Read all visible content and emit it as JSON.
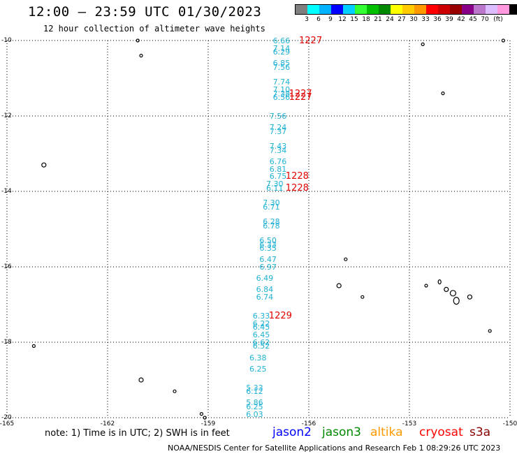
{
  "header": {
    "title": "12:00 — 23:59 UTC 01/30/2023",
    "subtitle": "12 hour collection of altimeter wave heights"
  },
  "scale": {
    "colors": [
      "#7f7f7f",
      "#00ffff",
      "#00b3ff",
      "#0000ff",
      "#00cfff",
      "#33ff33",
      "#00c000",
      "#008800",
      "#ffff00",
      "#ffcc00",
      "#ff9900",
      "#ff0000",
      "#cc0000",
      "#990000",
      "#880088",
      "#bb77cc",
      "#ddbbff",
      "#ff99dd",
      "#000000"
    ],
    "labels": [
      "3",
      "6",
      "9",
      "12",
      "15",
      "18",
      "21",
      "24",
      "27",
      "30",
      "33",
      "36",
      "39",
      "42",
      "45",
      "70",
      "(ft)"
    ]
  },
  "map": {
    "lon_range": [
      -165,
      -150
    ],
    "lat_range": [
      -20,
      -10
    ],
    "x_ticks": [
      "-165",
      "-162",
      "-159",
      "-156",
      "-153",
      "-150"
    ],
    "y_ticks": [
      "-10",
      "-12",
      "-14",
      "-16",
      "-18",
      "-20"
    ],
    "wave_heights": [
      {
        "v": "6.66",
        "lon": -156.8,
        "lat": -10.0
      },
      {
        "v": "7.14",
        "lon": -156.8,
        "lat": -10.2
      },
      {
        "v": "6.29",
        "lon": -156.8,
        "lat": -10.3
      },
      {
        "v": "6.85",
        "lon": -156.8,
        "lat": -10.6
      },
      {
        "v": "7.56",
        "lon": -156.8,
        "lat": -10.7
      },
      {
        "v": "7.74",
        "lon": -156.8,
        "lat": -11.1
      },
      {
        "v": "7.10",
        "lon": -156.8,
        "lat": -11.3
      },
      {
        "v": "7.38",
        "lon": -156.8,
        "lat": -11.4
      },
      {
        "v": "6.56",
        "lon": -156.8,
        "lat": -11.5
      },
      {
        "v": "7.56",
        "lon": -156.9,
        "lat": -12.0
      },
      {
        "v": "7.24",
        "lon": -156.9,
        "lat": -12.3
      },
      {
        "v": "7.37",
        "lon": -156.9,
        "lat": -12.4
      },
      {
        "v": "7.43",
        "lon": -156.9,
        "lat": -12.8
      },
      {
        "v": "7.34",
        "lon": -156.9,
        "lat": -12.9
      },
      {
        "v": "6.76",
        "lon": -156.9,
        "lat": -13.2
      },
      {
        "v": "6.81",
        "lon": -156.9,
        "lat": -13.4
      },
      {
        "v": "6.75",
        "lon": -156.9,
        "lat": -13.6
      },
      {
        "v": "7.30",
        "lon": -157.0,
        "lat": -13.8
      },
      {
        "v": "6.11",
        "lon": -157.0,
        "lat": -13.9
      },
      {
        "v": "7.30",
        "lon": -157.1,
        "lat": -14.3
      },
      {
        "v": "6.71",
        "lon": -157.1,
        "lat": -14.4
      },
      {
        "v": "6.28",
        "lon": -157.1,
        "lat": -14.8
      },
      {
        "v": "6.78",
        "lon": -157.1,
        "lat": -14.9
      },
      {
        "v": "6.50",
        "lon": -157.2,
        "lat": -15.3
      },
      {
        "v": "6.33",
        "lon": -157.2,
        "lat": -15.4
      },
      {
        "v": "6.35",
        "lon": -157.2,
        "lat": -15.5
      },
      {
        "v": "6.47",
        "lon": -157.2,
        "lat": -15.8
      },
      {
        "v": "6.97",
        "lon": -157.2,
        "lat": -16.0
      },
      {
        "v": "6.49",
        "lon": -157.3,
        "lat": -16.3
      },
      {
        "v": "6.84",
        "lon": -157.3,
        "lat": -16.6
      },
      {
        "v": "6.74",
        "lon": -157.3,
        "lat": -16.8
      },
      {
        "v": "6.33",
        "lon": -157.4,
        "lat": -17.3
      },
      {
        "v": "6.22",
        "lon": -157.4,
        "lat": -17.5
      },
      {
        "v": "6.45",
        "lon": -157.4,
        "lat": -17.6
      },
      {
        "v": "6.45",
        "lon": -157.4,
        "lat": -17.8
      },
      {
        "v": "6.62",
        "lon": -157.4,
        "lat": -18.0
      },
      {
        "v": "6.52",
        "lon": -157.4,
        "lat": -18.1
      },
      {
        "v": "6.38",
        "lon": -157.5,
        "lat": -18.4
      },
      {
        "v": "6.25",
        "lon": -157.5,
        "lat": -18.7
      },
      {
        "v": "5.33",
        "lon": -157.6,
        "lat": -19.2
      },
      {
        "v": "6.12",
        "lon": -157.6,
        "lat": -19.3
      },
      {
        "v": "5.86",
        "lon": -157.6,
        "lat": -19.6
      },
      {
        "v": "6.25",
        "lon": -157.6,
        "lat": -19.7
      },
      {
        "v": "6.03",
        "lon": -157.6,
        "lat": -19.9
      }
    ],
    "cycle_labels": [
      {
        "v": "1227",
        "lon": -156.0,
        "lat": -10.0
      },
      {
        "v": "1227",
        "lon": -156.3,
        "lat": -11.4
      },
      {
        "v": "1227",
        "lon": -156.3,
        "lat": -11.5
      },
      {
        "v": "1228",
        "lon": -156.4,
        "lat": -13.6
      },
      {
        "v": "1228",
        "lon": -156.4,
        "lat": -13.9
      },
      {
        "v": "1229",
        "lon": -156.9,
        "lat": -17.3
      }
    ]
  },
  "footer": {
    "note": "note: 1) Time is in UTC; 2) SWH is in feet",
    "legend": [
      {
        "label": "jason2",
        "color": "#0000ff"
      },
      {
        "label": "jason3",
        "color": "#008800"
      },
      {
        "label": "altika",
        "color": "#ff9900"
      },
      {
        "label": "cryosat",
        "color": "#ff0000"
      },
      {
        "label": "s3a",
        "color": "#880000"
      }
    ],
    "credit": "NOAA/NESDIS Center for Satellite Applications and Research     Feb  1 08:29:26 UTC 2023"
  }
}
